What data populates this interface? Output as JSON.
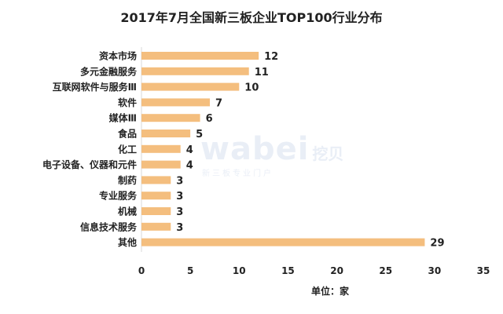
{
  "chart_data": {
    "type": "bar",
    "orientation": "horizontal",
    "title": "2017年7月全国新三板企业TOP100行业分布",
    "xlabel": "单位：家",
    "ylabel": "",
    "categories": [
      "资本市场",
      "多元金融服务",
      "互联网软件与服务Ⅲ",
      "软件",
      "媒体Ⅲ",
      "食品",
      "化工",
      "电子设备、仪器和元件",
      "制药",
      "专业服务",
      "机械",
      "信息技术服务",
      "其他"
    ],
    "values": [
      12,
      11,
      10,
      7,
      6,
      5,
      4,
      4,
      3,
      3,
      3,
      3,
      29
    ],
    "xlim": [
      0,
      35
    ],
    "xticks": [
      0,
      5,
      10,
      15,
      20,
      25,
      30,
      35
    ],
    "grid": false,
    "legend": "none",
    "bar_color": "#f4be7e"
  },
  "watermark": {
    "logo": "wabei",
    "logo_cn": "挖贝",
    "subtitle": "新三板专业门户"
  }
}
